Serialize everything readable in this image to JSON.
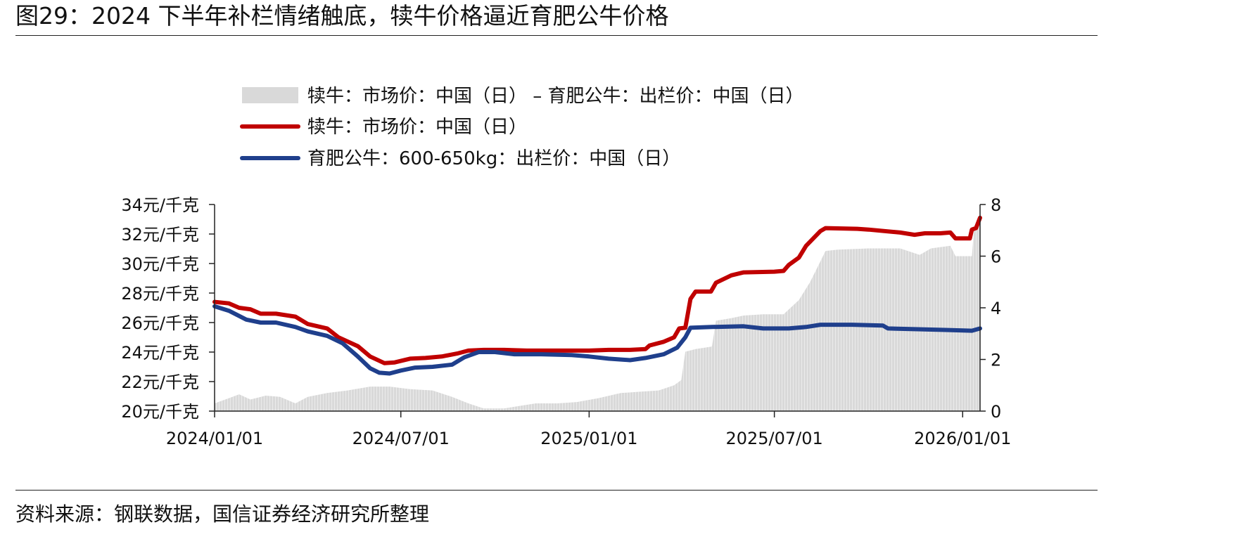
{
  "figure": {
    "title": "图29：2024 下半年补栏情绪触底，犊牛价格逼近育肥公牛价格",
    "source": "资料来源：钢联数据，国信证券经济研究所整理"
  },
  "chart_data": {
    "type": "line",
    "x_axis": {
      "tick_labels": [
        "2024/01/01",
        "2024/07/01",
        "2025/01/01",
        "2025/07/01",
        "2026/01/01"
      ],
      "range": [
        "2024/01/01",
        "2026/01/18"
      ]
    },
    "y_left": {
      "unit_suffix": "元/千克",
      "ylim": [
        20,
        34
      ],
      "ticks": [
        20,
        22,
        24,
        26,
        28,
        30,
        32,
        34
      ],
      "tick_labels": [
        "20元/千克",
        "22元/千克",
        "24元/千克",
        "26元/千克",
        "28元/千克",
        "30元/千克",
        "32元/千克",
        "34元/千克"
      ]
    },
    "y_right": {
      "ylim": [
        0,
        8
      ],
      "ticks": [
        0,
        2,
        4,
        6,
        8
      ],
      "tick_labels": [
        "0",
        "2",
        "4",
        "6",
        "8"
      ]
    },
    "grid": false,
    "legend_position": "top",
    "series": [
      {
        "name": "犊牛：市场价：中国（日） – 育肥公牛：出栏价：中国（日）",
        "type": "area",
        "axis": "right",
        "color": "#d9d9d9",
        "points": [
          [
            "2024/01/01",
            0.3
          ],
          [
            "2024/01/15",
            0.5
          ],
          [
            "2024/01/25",
            0.65
          ],
          [
            "2024/02/05",
            0.45
          ],
          [
            "2024/02/20",
            0.6
          ],
          [
            "2024/03/05",
            0.55
          ],
          [
            "2024/03/20",
            0.3
          ],
          [
            "2024/04/01",
            0.55
          ],
          [
            "2024/04/20",
            0.7
          ],
          [
            "2024/05/10",
            0.8
          ],
          [
            "2024/06/01",
            0.95
          ],
          [
            "2024/06/20",
            0.95
          ],
          [
            "2024/07/10",
            0.85
          ],
          [
            "2024/08/01",
            0.8
          ],
          [
            "2024/08/20",
            0.55
          ],
          [
            "2024/09/05",
            0.3
          ],
          [
            "2024/09/20",
            0.1
          ],
          [
            "2024/10/10",
            0.1
          ],
          [
            "2024/10/25",
            0.2
          ],
          [
            "2024/11/10",
            0.3
          ],
          [
            "2024/12/01",
            0.3
          ],
          [
            "2024/12/20",
            0.35
          ],
          [
            "2025/01/10",
            0.5
          ],
          [
            "2025/02/01",
            0.7
          ],
          [
            "2025/02/20",
            0.75
          ],
          [
            "2025/03/10",
            0.8
          ],
          [
            "2025/03/25",
            1.0
          ],
          [
            "2025/04/01",
            1.2
          ],
          [
            "2025/04/05",
            2.3
          ],
          [
            "2025/04/15",
            2.4
          ],
          [
            "2025/05/01",
            2.5
          ],
          [
            "2025/05/05",
            3.5
          ],
          [
            "2025/05/20",
            3.6
          ],
          [
            "2025/06/01",
            3.7
          ],
          [
            "2025/06/20",
            3.75
          ],
          [
            "2025/07/10",
            3.75
          ],
          [
            "2025/07/25",
            4.3
          ],
          [
            "2025/08/05",
            5.0
          ],
          [
            "2025/08/20",
            6.2
          ],
          [
            "2025/09/01",
            6.25
          ],
          [
            "2025/10/01",
            6.3
          ],
          [
            "2025/11/01",
            6.3
          ],
          [
            "2025/11/20",
            6.05
          ],
          [
            "2025/12/01",
            6.3
          ],
          [
            "2025/12/20",
            6.4
          ],
          [
            "2025/12/25",
            6.0
          ],
          [
            "2026/01/10",
            6.0
          ],
          [
            "2026/01/12",
            7.0
          ],
          [
            "2026/01/18",
            7.3
          ]
        ]
      },
      {
        "name": "犊牛：市场价：中国（日）",
        "type": "line",
        "axis": "left",
        "color": "#c00000",
        "points": [
          [
            "2024/01/01",
            27.4
          ],
          [
            "2024/01/15",
            27.3
          ],
          [
            "2024/01/25",
            27.0
          ],
          [
            "2024/02/05",
            26.9
          ],
          [
            "2024/02/15",
            26.6
          ],
          [
            "2024/03/01",
            26.6
          ],
          [
            "2024/03/20",
            26.4
          ],
          [
            "2024/04/01",
            25.9
          ],
          [
            "2024/04/20",
            25.6
          ],
          [
            "2024/05/01",
            25.0
          ],
          [
            "2024/05/20",
            24.4
          ],
          [
            "2024/06/01",
            23.7
          ],
          [
            "2024/06/15",
            23.25
          ],
          [
            "2024/06/25",
            23.3
          ],
          [
            "2024/07/10",
            23.55
          ],
          [
            "2024/07/25",
            23.6
          ],
          [
            "2024/08/10",
            23.7
          ],
          [
            "2024/08/25",
            23.9
          ],
          [
            "2024/09/05",
            24.1
          ],
          [
            "2024/09/20",
            24.15
          ],
          [
            "2024/10/10",
            24.15
          ],
          [
            "2024/11/01",
            24.1
          ],
          [
            "2024/12/01",
            24.1
          ],
          [
            "2025/01/01",
            24.1
          ],
          [
            "2025/01/20",
            24.15
          ],
          [
            "2025/02/10",
            24.15
          ],
          [
            "2025/02/25",
            24.2
          ],
          [
            "2025/03/01",
            24.45
          ],
          [
            "2025/03/15",
            24.7
          ],
          [
            "2025/03/25",
            25.0
          ],
          [
            "2025/03/30",
            25.6
          ],
          [
            "2025/04/05",
            25.65
          ],
          [
            "2025/04/10",
            27.6
          ],
          [
            "2025/04/15",
            28.1
          ],
          [
            "2025/04/30",
            28.1
          ],
          [
            "2025/05/05",
            28.7
          ],
          [
            "2025/05/20",
            29.2
          ],
          [
            "2025/06/01",
            29.4
          ],
          [
            "2025/07/01",
            29.45
          ],
          [
            "2025/07/10",
            29.5
          ],
          [
            "2025/07/15",
            29.9
          ],
          [
            "2025/07/25",
            30.4
          ],
          [
            "2025/08/01",
            31.2
          ],
          [
            "2025/08/15",
            32.2
          ],
          [
            "2025/08/20",
            32.4
          ],
          [
            "2025/09/20",
            32.35
          ],
          [
            "2025/10/01",
            32.3
          ],
          [
            "2025/11/01",
            32.1
          ],
          [
            "2025/11/15",
            31.95
          ],
          [
            "2025/11/25",
            32.05
          ],
          [
            "2025/12/10",
            32.05
          ],
          [
            "2025/12/20",
            32.1
          ],
          [
            "2025/12/25",
            31.7
          ],
          [
            "2026/01/08",
            31.7
          ],
          [
            "2026/01/10",
            32.3
          ],
          [
            "2026/01/14",
            32.4
          ],
          [
            "2026/01/18",
            33.1
          ]
        ]
      },
      {
        "name": "育肥公牛：600-650kg：出栏价：中国（日）",
        "type": "line",
        "axis": "left",
        "color": "#1f3f8c",
        "points": [
          [
            "2024/01/01",
            27.1
          ],
          [
            "2024/01/15",
            26.8
          ],
          [
            "2024/02/01",
            26.2
          ],
          [
            "2024/02/15",
            26.0
          ],
          [
            "2024/03/01",
            26.0
          ],
          [
            "2024/03/20",
            25.7
          ],
          [
            "2024/04/01",
            25.4
          ],
          [
            "2024/04/20",
            25.1
          ],
          [
            "2024/05/05",
            24.6
          ],
          [
            "2024/05/20",
            23.7
          ],
          [
            "2024/06/01",
            22.9
          ],
          [
            "2024/06/10",
            22.6
          ],
          [
            "2024/06/20",
            22.55
          ],
          [
            "2024/07/01",
            22.75
          ],
          [
            "2024/07/15",
            22.95
          ],
          [
            "2024/08/01",
            23.0
          ],
          [
            "2024/08/20",
            23.15
          ],
          [
            "2024/09/01",
            23.65
          ],
          [
            "2024/09/15",
            24.0
          ],
          [
            "2024/10/01",
            24.0
          ],
          [
            "2024/10/20",
            23.85
          ],
          [
            "2024/11/15",
            23.85
          ],
          [
            "2024/12/15",
            23.8
          ],
          [
            "2025/01/01",
            23.7
          ],
          [
            "2025/01/20",
            23.55
          ],
          [
            "2025/02/10",
            23.45
          ],
          [
            "2025/02/25",
            23.6
          ],
          [
            "2025/03/15",
            23.85
          ],
          [
            "2025/03/28",
            24.3
          ],
          [
            "2025/04/05",
            25.0
          ],
          [
            "2025/04/10",
            25.65
          ],
          [
            "2025/05/01",
            25.7
          ],
          [
            "2025/06/01",
            25.75
          ],
          [
            "2025/06/20",
            25.6
          ],
          [
            "2025/07/15",
            25.6
          ],
          [
            "2025/08/01",
            25.7
          ],
          [
            "2025/08/15",
            25.85
          ],
          [
            "2025/09/15",
            25.85
          ],
          [
            "2025/10/15",
            25.8
          ],
          [
            "2025/10/20",
            25.6
          ],
          [
            "2025/11/15",
            25.55
          ],
          [
            "2025/12/15",
            25.5
          ],
          [
            "2026/01/10",
            25.45
          ],
          [
            "2026/01/18",
            25.6
          ]
        ]
      }
    ]
  }
}
